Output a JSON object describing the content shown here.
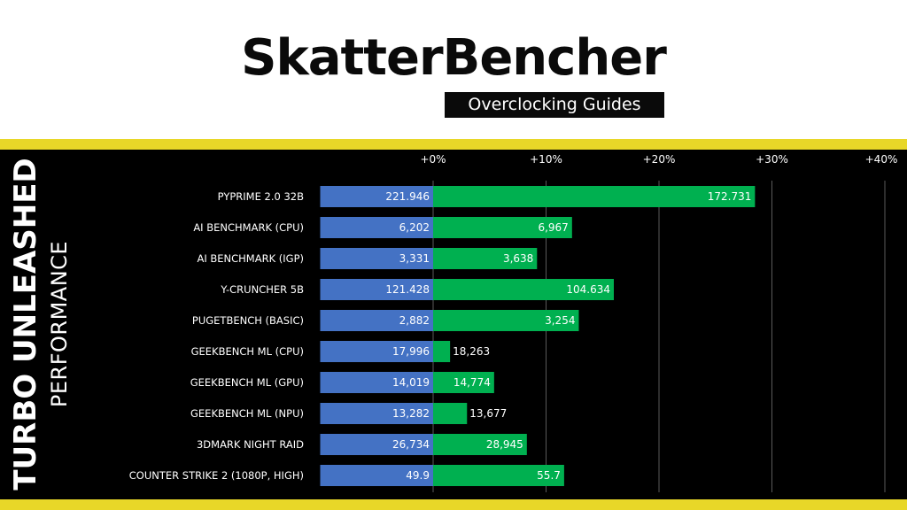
{
  "header": {
    "brand": "SkatterBencher",
    "subtitle": "Overclocking Guides"
  },
  "side": {
    "title": "TURBO UNLEASHED",
    "subtitle": "PERFORMANCE"
  },
  "colors": {
    "accent_yellow": "#e8d728",
    "baseline_bar": "#4472c4",
    "gain_bar": "#00b050",
    "background": "#000000"
  },
  "chart_data": {
    "type": "bar",
    "orientation": "horizontal",
    "stacked": true,
    "x_axis_ticks": [
      "+0%",
      "+10%",
      "+20%",
      "+30%",
      "+40%"
    ],
    "xlim": [
      -10,
      40
    ],
    "grid": true,
    "categories": [
      "PYPRIME 2.0 32B",
      "AI BENCHMARK (CPU)",
      "AI BENCHMARK (IGP)",
      "Y-CRUNCHER 5B",
      "PUGETBENCH (BASIC)",
      "GEEKBENCH ML (CPU)",
      "GEEKBENCH ML (GPU)",
      "GEEKBENCH ML (NPU)",
      "3DMARK NIGHT RAID",
      "COUNTER STRIKE 2 (1080P, HIGH)"
    ],
    "series": [
      {
        "value_labels": [
          "221.946",
          "6,202",
          "3,331",
          "121.428",
          "2,882",
          "17,996",
          "14,019",
          "13,282",
          "26,734",
          "49.9"
        ]
      },
      {
        "gain_percent": [
          28.5,
          12.3,
          9.2,
          16.0,
          12.9,
          1.5,
          5.4,
          3.0,
          8.3,
          11.6
        ],
        "value_labels": [
          "172.731",
          "6,967",
          "3,638",
          "104.634",
          "3,254",
          "18,263",
          "14,774",
          "13,677",
          "28,945",
          "55.7"
        ]
      }
    ]
  }
}
